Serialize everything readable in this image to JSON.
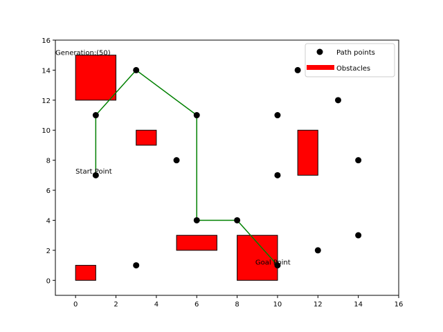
{
  "chart_data": {
    "type": "scatter",
    "xlim": [
      -1,
      16
    ],
    "ylim": [
      -1,
      16
    ],
    "xticks": [
      0,
      2,
      4,
      6,
      8,
      10,
      12,
      14,
      16
    ],
    "yticks": [
      0,
      2,
      4,
      6,
      8,
      10,
      12,
      14,
      16
    ],
    "grid": false,
    "legend_position": "top-right",
    "legend": [
      {
        "label": "Path points",
        "marker": "circle",
        "color": "#000000"
      },
      {
        "label": "Obstacles",
        "marker": "rect",
        "color": "#ff0000"
      }
    ],
    "points": [
      {
        "x": 1,
        "y": 11
      },
      {
        "x": 1,
        "y": 7
      },
      {
        "x": 3,
        "y": 14
      },
      {
        "x": 3,
        "y": 1
      },
      {
        "x": 5,
        "y": 8
      },
      {
        "x": 6,
        "y": 11
      },
      {
        "x": 6,
        "y": 4
      },
      {
        "x": 8,
        "y": 4
      },
      {
        "x": 10,
        "y": 11
      },
      {
        "x": 10,
        "y": 7
      },
      {
        "x": 10,
        "y": 1
      },
      {
        "x": 11,
        "y": 14
      },
      {
        "x": 12,
        "y": 2
      },
      {
        "x": 13,
        "y": 12
      },
      {
        "x": 14,
        "y": 8
      },
      {
        "x": 14,
        "y": 3
      }
    ],
    "obstacles": [
      {
        "x": 0,
        "y": 12,
        "w": 2,
        "h": 3
      },
      {
        "x": 3,
        "y": 9,
        "w": 1,
        "h": 1
      },
      {
        "x": 11,
        "y": 7,
        "w": 1,
        "h": 3
      },
      {
        "x": 5,
        "y": 2,
        "w": 2,
        "h": 1
      },
      {
        "x": 8,
        "y": 0,
        "w": 2,
        "h": 3
      },
      {
        "x": 0,
        "y": 0,
        "w": 1,
        "h": 1
      }
    ],
    "path": [
      {
        "x": 1,
        "y": 7
      },
      {
        "x": 1,
        "y": 11
      },
      {
        "x": 3,
        "y": 14
      },
      {
        "x": 6,
        "y": 11
      },
      {
        "x": 6,
        "y": 4
      },
      {
        "x": 8,
        "y": 4
      },
      {
        "x": 10,
        "y": 1
      }
    ],
    "path_color": "#008000",
    "annotations": [
      {
        "text": "Generation:(50)",
        "x": -1,
        "y": 15
      },
      {
        "text": "Start Point",
        "x": 0,
        "y": 7.1
      },
      {
        "text": "Goal Point",
        "x": 8.9,
        "y": 1.05
      }
    ]
  }
}
